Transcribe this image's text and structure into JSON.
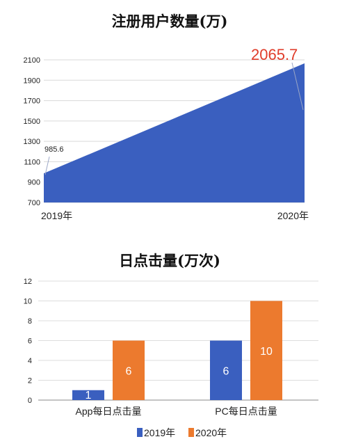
{
  "chart_data": [
    {
      "type": "area",
      "title": "注册用户数量(万)",
      "x": [
        "2019年",
        "2020年"
      ],
      "series": [
        {
          "values": [
            985.6,
            2065.7
          ]
        }
      ],
      "ylim": [
        700,
        2100
      ],
      "yticks": [
        700,
        900,
        1100,
        1300,
        1500,
        1700,
        1900,
        2100
      ],
      "grid": true,
      "annotations": [
        "985.6",
        "2065.7"
      ],
      "colors": {
        "area": "#3a5fbf",
        "highlight_label": "#e03c2a"
      }
    },
    {
      "type": "bar",
      "title": "日点击量(万次)",
      "categories": [
        "App每日点击量",
        "PC每日点击量"
      ],
      "series": [
        {
          "name": "2019年",
          "values": [
            1,
            6
          ],
          "color": "#3a5fbf"
        },
        {
          "name": "2020年",
          "values": [
            6,
            10
          ],
          "color": "#ec7a2e"
        }
      ],
      "ylim": [
        0,
        12
      ],
      "yticks": [
        0,
        2,
        4,
        6,
        8,
        10,
        12
      ],
      "grid": true,
      "legend": "bottom-center"
    }
  ]
}
